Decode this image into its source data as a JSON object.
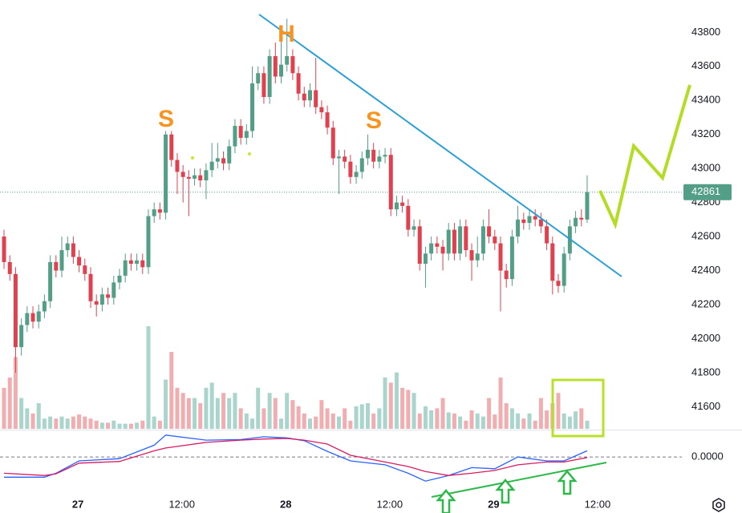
{
  "chart_data": {
    "type": "candlestick",
    "annotations": [
      "S",
      "H",
      "S"
    ],
    "open": [
      42600,
      42450,
      42380,
      41950,
      42080,
      42150,
      42100,
      42160,
      42220,
      42450,
      42400,
      42520,
      42560,
      42480,
      42430,
      42380,
      42220,
      42200,
      42260,
      42240,
      42330,
      42370,
      42460,
      42440,
      42460,
      42420,
      42720,
      42760,
      42740,
      43200,
      43050,
      42980,
      42950,
      42940,
      42960,
      42930,
      42990,
      43040,
      43060,
      43030,
      43130,
      43250,
      43180,
      43220,
      43500,
      43560,
      43420,
      43660,
      43540,
      43610,
      43660,
      43560,
      43440,
      43400,
      43460,
      43360,
      43330,
      43240,
      43060,
      43070,
      43040,
      42950,
      42980,
      43060,
      43110,
      43040,
      43070,
      43080,
      42760,
      42800,
      42780,
      42640,
      42660,
      42440,
      42500,
      42560,
      42540,
      42500,
      42640,
      42500,
      42660,
      42520,
      42460,
      42500,
      42660,
      42600,
      42560,
      42400,
      42350,
      42600,
      42700,
      42680,
      42720,
      42700,
      42660,
      42560,
      42340,
      42310,
      42500,
      42660,
      42710,
      42700
    ],
    "high": [
      42640,
      42490,
      42420,
      42120,
      42190,
      42190,
      42200,
      42260,
      42490,
      42490,
      42600,
      42600,
      42600,
      42520,
      42470,
      42420,
      42260,
      42300,
      42300,
      42370,
      42410,
      42500,
      42500,
      42500,
      42500,
      42760,
      42800,
      42800,
      43220,
      43220,
      43090,
      43020,
      42990,
      43000,
      43000,
      43030,
      43150,
      43150,
      43100,
      43170,
      43290,
      43290,
      43260,
      43600,
      43600,
      43600,
      43700,
      43740,
      43800,
      43880,
      43700,
      43600,
      43480,
      43500,
      43650,
      43400,
      43370,
      43280,
      43110,
      43110,
      43080,
      43020,
      43100,
      43200,
      43150,
      43110,
      43120,
      43120,
      42840,
      42840,
      42820,
      42700,
      42700,
      42540,
      42600,
      42600,
      42580,
      42680,
      42680,
      42700,
      42700,
      42560,
      42600,
      42700,
      42760,
      42640,
      42600,
      42440,
      42640,
      42780,
      42740,
      42760,
      42760,
      42740,
      42700,
      42600,
      42380,
      42540,
      42700,
      42750,
      42760,
      42960
    ],
    "low": [
      42410,
      42340,
      41800,
      41900,
      42040,
      42060,
      42060,
      42120,
      42180,
      42360,
      42360,
      42480,
      42440,
      42390,
      42340,
      42180,
      42130,
      42160,
      42200,
      42200,
      42290,
      42330,
      42400,
      42400,
      42380,
      42380,
      42680,
      42700,
      42700,
      43010,
      42850,
      42800,
      42720,
      42900,
      42890,
      42820,
      42950,
      43000,
      42990,
      42990,
      43090,
      43140,
      43140,
      43180,
      43460,
      43380,
      43380,
      43500,
      43500,
      43570,
      43520,
      43400,
      43360,
      43360,
      43320,
      43290,
      43200,
      43020,
      42850,
      43000,
      42910,
      42910,
      42940,
      43020,
      43000,
      43000,
      43030,
      42720,
      42720,
      42740,
      42600,
      42600,
      42400,
      42300,
      42460,
      42500,
      42400,
      42460,
      42460,
      42460,
      42480,
      42340,
      42420,
      42460,
      42560,
      42520,
      42160,
      42300,
      42310,
      42560,
      42640,
      42640,
      42660,
      42620,
      42520,
      42260,
      42270,
      42270,
      42460,
      42620,
      42660,
      42680
    ],
    "close": [
      42450,
      42380,
      41950,
      42080,
      42150,
      42100,
      42160,
      42220,
      42450,
      42400,
      42520,
      42560,
      42480,
      42430,
      42380,
      42220,
      42200,
      42260,
      42240,
      42330,
      42370,
      42460,
      42440,
      42460,
      42420,
      42720,
      42760,
      42740,
      43200,
      43050,
      42980,
      42950,
      42940,
      42960,
      42930,
      42990,
      43040,
      43060,
      43030,
      43130,
      43250,
      43180,
      43220,
      43500,
      43560,
      43420,
      43660,
      43540,
      43610,
      43660,
      43560,
      43440,
      43400,
      43460,
      43360,
      43330,
      43240,
      43060,
      43070,
      43040,
      42950,
      42980,
      43060,
      43110,
      43040,
      43070,
      43080,
      42760,
      42800,
      42780,
      42640,
      42660,
      42440,
      42500,
      42560,
      42540,
      42500,
      42640,
      42500,
      42660,
      42520,
      42460,
      42500,
      42660,
      42600,
      42560,
      42400,
      42350,
      42600,
      42700,
      42680,
      42720,
      42700,
      42660,
      42560,
      42340,
      42310,
      42500,
      42660,
      42710,
      42700,
      42861
    ],
    "volume": [
      40,
      50,
      70,
      30,
      20,
      15,
      25,
      10,
      12,
      10,
      12,
      10,
      12,
      14,
      12,
      10,
      8,
      6,
      6,
      8,
      5,
      5,
      5,
      6,
      8,
      100,
      12,
      8,
      48,
      75,
      40,
      35,
      30,
      30,
      25,
      40,
      45,
      30,
      35,
      30,
      35,
      20,
      15,
      10,
      40,
      20,
      35,
      30,
      10,
      35,
      28,
      22,
      15,
      10,
      12,
      28,
      20,
      15,
      12,
      20,
      8,
      22,
      24,
      25,
      15,
      20,
      50,
      45,
      55,
      40,
      38,
      35,
      15,
      22,
      18,
      20,
      30,
      16,
      15,
      12,
      8,
      18,
      15,
      12,
      30,
      14,
      50,
      25,
      20,
      15,
      10,
      15,
      8,
      30,
      18,
      25,
      35,
      15,
      12,
      17,
      20,
      8
    ],
    "volume_lim": [
      0,
      100
    ],
    "up_color": "#529e86",
    "down_color": "#e0414f",
    "up_volume_color": "#a9d5cc",
    "down_volume_color": "#f1aeb1",
    "ylim": [
      41470,
      43990
    ],
    "yticks": [
      41600,
      41800,
      42000,
      42200,
      42400,
      42600,
      42800,
      43000,
      43200,
      43400,
      43600,
      43800
    ],
    "xlim": [
      -0.7,
      117.4
    ],
    "xticks": [
      {
        "value": 12.8,
        "label": "27"
      },
      {
        "value": 30.8,
        "label": "12:00"
      },
      {
        "value": 48.8,
        "label": "28"
      },
      {
        "value": 66.8,
        "label": "12:00"
      },
      {
        "value": 84.8,
        "label": "29"
      },
      {
        "value": 102.8,
        "label": "12:00"
      }
    ],
    "last_price": 42861,
    "macd": {
      "x": [
        0,
        7,
        9,
        13,
        20,
        26,
        28,
        35,
        41,
        45,
        49,
        52,
        56,
        60,
        66,
        70,
        73,
        77,
        81,
        85,
        89,
        94,
        97,
        101
      ],
      "lines": [
        {
          "color": "#2962ff",
          "values": [
            -36,
            -36,
            -29,
            -7,
            -3,
            21,
            39,
            30,
            31,
            36,
            34,
            29,
            10,
            -7,
            -14,
            -29,
            -43,
            -33,
            -19,
            -21,
            0,
            -7,
            -7,
            11
          ]
        },
        {
          "color": "#d81b60",
          "values": [
            -29,
            -33,
            -30,
            -11,
            -8,
            11,
            16,
            26,
            30,
            32,
            33,
            30,
            23,
            3,
            -9,
            -17,
            -26,
            -33,
            -29,
            -24,
            -14,
            -9,
            -9,
            -1
          ]
        }
      ],
      "ylim": [
        -57,
        43
      ],
      "yticks": [
        {
          "value": 0,
          "label": "0.0000"
        }
      ]
    }
  }
}
